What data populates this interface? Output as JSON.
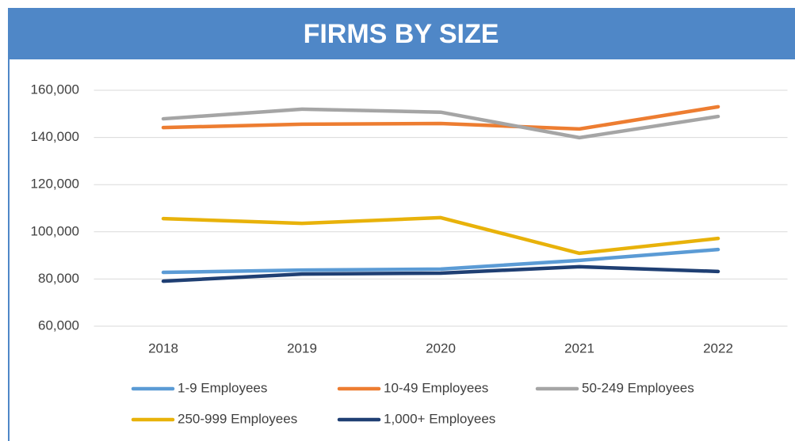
{
  "chart_data": {
    "type": "line",
    "title": "FIRMS BY SIZE",
    "categories": [
      "2018",
      "2019",
      "2020",
      "2021",
      "2022"
    ],
    "series": [
      {
        "name": "1-9 Employees",
        "color": "#5b9bd5",
        "values": [
          82800,
          83800,
          84200,
          87900,
          92500
        ]
      },
      {
        "name": "10-49 Employees",
        "color": "#ed7d31",
        "values": [
          144200,
          145600,
          145900,
          143600,
          153000
        ]
      },
      {
        "name": "50-249 Employees",
        "color": "#a5a5a5",
        "values": [
          147900,
          152000,
          150700,
          139900,
          148900
        ]
      },
      {
        "name": "250-999 Employees",
        "color": "#e8b20a",
        "values": [
          105600,
          103600,
          106000,
          90900,
          97200
        ]
      },
      {
        "name": "1,000+ Employees",
        "color": "#1f3f73",
        "values": [
          79100,
          82100,
          82500,
          85200,
          83200
        ]
      }
    ],
    "ylim": [
      60000,
      160000
    ],
    "yticks": [
      {
        "value": 60000,
        "label": "60,000"
      },
      {
        "value": 80000,
        "label": "80,000"
      },
      {
        "value": 100000,
        "label": "100,000"
      },
      {
        "value": 120000,
        "label": "120,000"
      },
      {
        "value": 140000,
        "label": "140,000"
      },
      {
        "value": 160000,
        "label": "160,000"
      }
    ],
    "grid": true,
    "legend": "bottom"
  }
}
